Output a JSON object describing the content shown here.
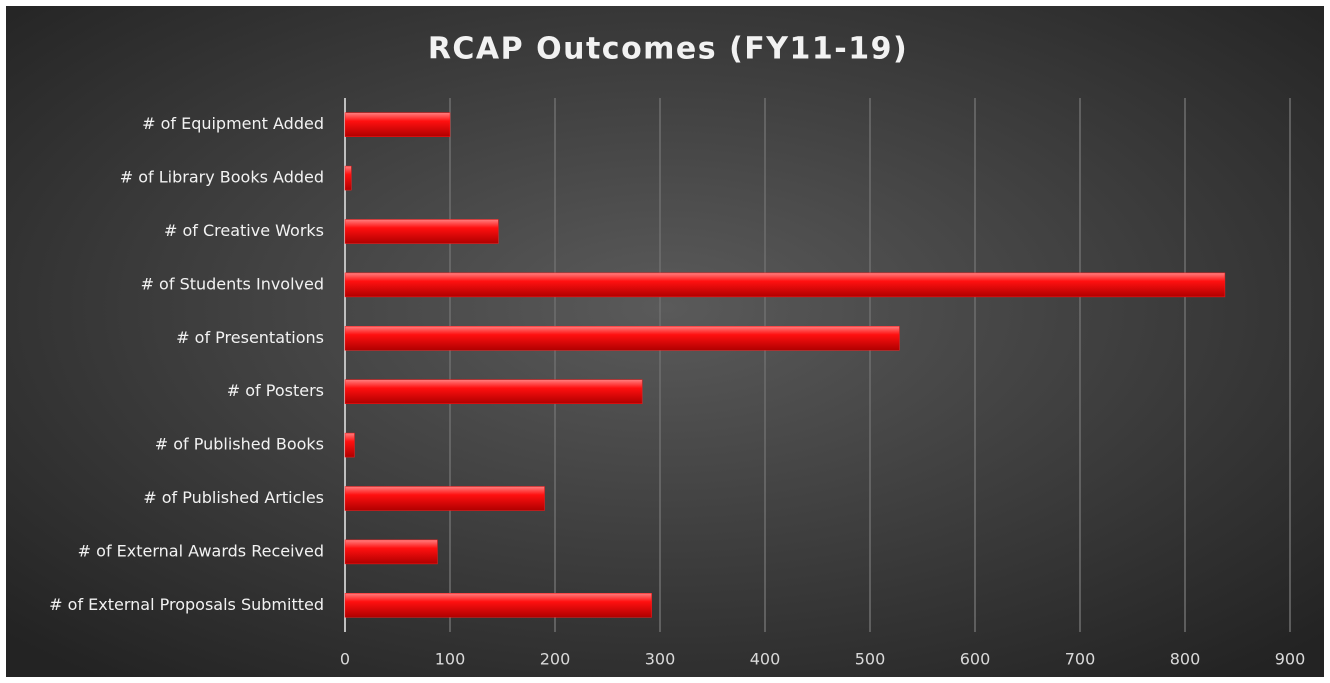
{
  "chart_data": {
    "type": "bar",
    "orientation": "horizontal",
    "title": "RCAP Outcomes (FY11-19)",
    "categories": [
      "# of Equipment Added",
      "# of Library Books Added",
      "# of Creative Works",
      "# of Students Involved",
      "# of Presentations",
      "# of Posters",
      "# of Published Books",
      "# of Published Articles",
      "# of External Awards Received",
      "# of External Proposals Submitted"
    ],
    "values": [
      100,
      6,
      146,
      838,
      528,
      283,
      9,
      190,
      88,
      292
    ],
    "color": "#ff1a1a",
    "xlim": [
      0,
      900
    ],
    "xticks": [
      0,
      100,
      200,
      300,
      400,
      500,
      600,
      700,
      800,
      900
    ],
    "grid": true
  }
}
